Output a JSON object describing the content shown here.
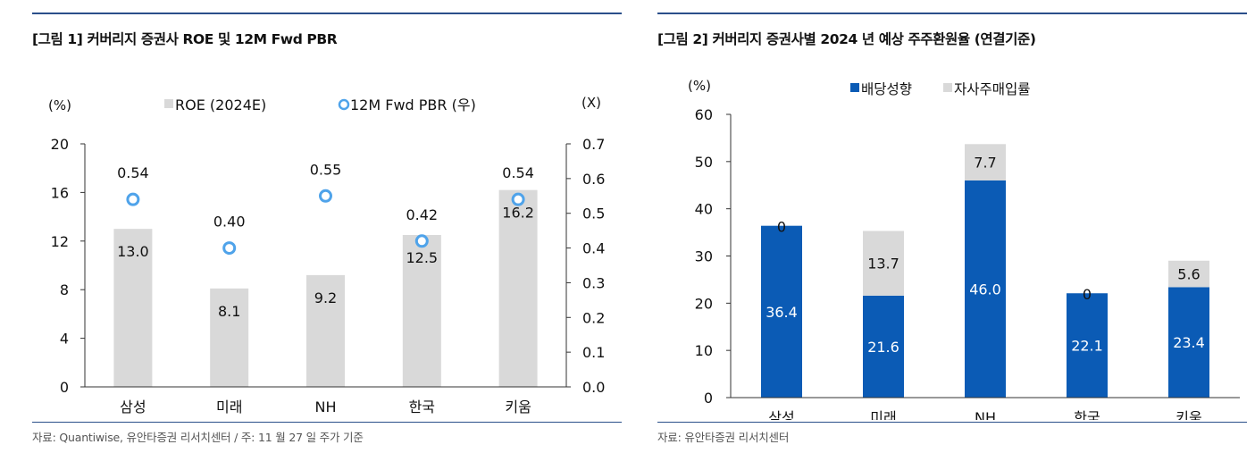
{
  "chart_data": [
    {
      "type": "bar",
      "title": "[그림 1] 커버리지 증권사 ROE 및 12M Fwd PBR",
      "source": "자료: Quantiwise, 유안타증권 리서치센터 / 주: 11 월 27 일 주가 기준",
      "categories": [
        "삼성",
        "미래",
        "NH",
        "한국",
        "키움"
      ],
      "series": [
        {
          "name": "ROE (2024E)",
          "type": "bar",
          "axis": "left",
          "color": "#d9d9d9",
          "values": [
            13.0,
            8.1,
            9.2,
            12.5,
            16.2
          ]
        },
        {
          "name": "12M Fwd PBR (우)",
          "type": "scatter",
          "axis": "right",
          "color": "#4fa3ea",
          "values": [
            0.54,
            0.4,
            0.55,
            0.42,
            0.54
          ]
        }
      ],
      "left_axis": {
        "unit": "(%)",
        "ylim": [
          0,
          20
        ],
        "ticks": [
          "0",
          "4",
          "8",
          "12",
          "16",
          "20"
        ]
      },
      "right_axis": {
        "unit": "(X)",
        "ylim": [
          0,
          0.7
        ],
        "ticks": [
          "0.0",
          "0.1",
          "0.2",
          "0.3",
          "0.4",
          "0.5",
          "0.6",
          "0.7"
        ]
      },
      "bar_labels": [
        "13.0",
        "8.1",
        "9.2",
        "12.5",
        "16.2"
      ],
      "point_labels": [
        "0.54",
        "0.40",
        "0.55",
        "0.42",
        "0.54"
      ],
      "legend_position": "top-center",
      "grid": false
    },
    {
      "type": "bar",
      "stacked": true,
      "title": "[그림 2] 커버리지 증권사별 2024 년 예상 주주환원율 (연결기준)",
      "source": "자료: 유안타증권 리서치센터",
      "categories": [
        "삼성",
        "미래",
        "NH",
        "한국",
        "키움"
      ],
      "series": [
        {
          "name": "배당성향",
          "color": "#0b5bb5",
          "values": [
            36.4,
            21.6,
            46.0,
            22.1,
            23.4
          ],
          "labels": [
            "36.4",
            "21.6",
            "46.0",
            "22.1",
            "23.4"
          ]
        },
        {
          "name": "자사주매입률",
          "color": "#d9d9d9",
          "values": [
            0,
            13.7,
            7.7,
            0,
            5.6
          ],
          "labels": [
            "0",
            "13.7",
            "7.7",
            "0",
            "5.6"
          ]
        }
      ],
      "y_axis": {
        "unit": "(%)",
        "ylim": [
          0,
          60
        ],
        "ticks": [
          "0",
          "10",
          "20",
          "30",
          "40",
          "50",
          "60"
        ]
      },
      "legend_position": "top-center",
      "grid": false
    }
  ]
}
